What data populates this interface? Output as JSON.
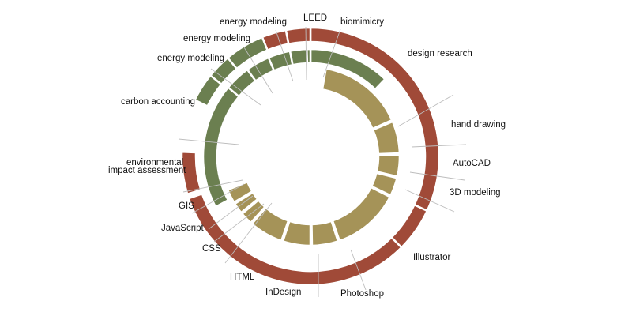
{
  "chart_data": {
    "type": "donut",
    "title": "",
    "rings": [
      {
        "name": "outer",
        "segments": [
          {
            "label": "design research",
            "color": "#a04a38",
            "start_deg": 0,
            "end_deg": 115
          },
          {
            "label": "hand drawing",
            "color": "#a04a38",
            "start_deg": 115,
            "end_deg": 135
          },
          {
            "label": "Illustrator",
            "color": "#a04a38",
            "start_deg": 135,
            "end_deg": 251
          },
          {
            "label": "InDesign",
            "color": "#a04a38",
            "start_deg": 253,
            "end_deg": 272
          },
          {
            "label": "environmental impact assessment",
            "color": "#6b7f50",
            "start_deg": 296,
            "end_deg": 309
          },
          {
            "label": "carbon accounting",
            "color": "#6b7f50",
            "start_deg": 309,
            "end_deg": 320
          },
          {
            "label": "energy modeling",
            "color": "#6b7f50",
            "start_deg": 320,
            "end_deg": 338
          },
          {
            "label": "energy modeling",
            "color": "#a04a38",
            "start_deg": 338,
            "end_deg": 349
          },
          {
            "label": "LEED",
            "color": "#a04a38",
            "start_deg": 349,
            "end_deg": 360
          }
        ]
      },
      {
        "name": "middle",
        "segments": [
          {
            "label": "design research",
            "color": "#6b7f50",
            "start_deg": 0,
            "end_deg": 44
          },
          {
            "label": "carbon accounting",
            "color": "#6b7f50",
            "start_deg": 242,
            "end_deg": 310
          },
          {
            "label": "energy modeling",
            "color": "#6b7f50",
            "start_deg": 310,
            "end_deg": 324
          },
          {
            "label": "energy modeling",
            "color": "#6b7f50",
            "start_deg": 324,
            "end_deg": 337
          },
          {
            "label": "energy modeling",
            "color": "#6b7f50",
            "start_deg": 337,
            "end_deg": 349
          },
          {
            "label": "LEED",
            "color": "#6b7f50",
            "start_deg": 349,
            "end_deg": 358
          },
          {
            "label": "biomimicry",
            "color": "#6b7f50",
            "start_deg": 358,
            "end_deg": 360
          }
        ]
      },
      {
        "name": "inner",
        "segments": [
          {
            "label": "design research",
            "color": "#a59358",
            "start_deg": 10,
            "end_deg": 66
          },
          {
            "label": "hand drawing",
            "color": "#a59358",
            "start_deg": 67,
            "end_deg": 88
          },
          {
            "label": "AutoCAD",
            "color": "#a59358",
            "start_deg": 89,
            "end_deg": 103
          },
          {
            "label": "3D modeling",
            "color": "#a59358",
            "start_deg": 104,
            "end_deg": 116
          },
          {
            "label": "Illustrator",
            "color": "#a59358",
            "start_deg": 117,
            "end_deg": 161
          },
          {
            "label": "Photoshop",
            "color": "#a59358",
            "start_deg": 162,
            "end_deg": 179
          },
          {
            "label": "InDesign",
            "color": "#a59358",
            "start_deg": 180,
            "end_deg": 198
          },
          {
            "label": "HTML",
            "color": "#a59358",
            "start_deg": 199,
            "end_deg": 221
          },
          {
            "label": "CSS",
            "color": "#a59358",
            "start_deg": 222,
            "end_deg": 230
          },
          {
            "label": "JavaScript",
            "color": "#a59358",
            "start_deg": 231,
            "end_deg": 238
          },
          {
            "label": "GIS",
            "color": "#a59358",
            "start_deg": 239,
            "end_deg": 248
          }
        ]
      }
    ],
    "labels": [
      {
        "text": "energy modeling",
        "side": "left"
      },
      {
        "text": "LEED",
        "side": "left"
      },
      {
        "text": "biomimicry",
        "side": "left"
      },
      {
        "text": "design research",
        "side": "left"
      },
      {
        "text": "energy modeling",
        "side": "left"
      },
      {
        "text": "energy modeling",
        "side": "left"
      },
      {
        "text": "carbon accounting",
        "side": "left"
      },
      {
        "text": "hand drawing",
        "side": "left"
      },
      {
        "text": "AutoCAD",
        "side": "left"
      },
      {
        "text": "3D modeling",
        "side": "left"
      },
      {
        "text": "environmental",
        "side": "left"
      },
      {
        "text": "impact assessment",
        "side": "left"
      },
      {
        "text": "GIS",
        "side": "left"
      },
      {
        "text": "JavaScript",
        "side": "left"
      },
      {
        "text": "CSS",
        "side": "left"
      },
      {
        "text": "Illustrator",
        "side": "left"
      },
      {
        "text": "HTML",
        "side": "left"
      },
      {
        "text": "InDesign",
        "side": "left"
      },
      {
        "text": "Photoshop",
        "side": "left"
      }
    ]
  }
}
